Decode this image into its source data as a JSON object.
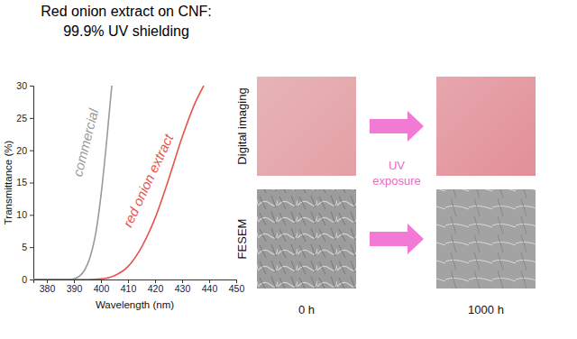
{
  "chart_data": {
    "type": "line",
    "title": "Red onion extract on CNF:\n99.9% UV shielding",
    "xlabel": "Wavelength (nm)",
    "ylabel": "Transmittance (%)",
    "xlim": [
      375,
      450
    ],
    "xticks": [
      380,
      390,
      400,
      410,
      420,
      430,
      440,
      450
    ],
    "ylim": [
      0,
      30
    ],
    "yticks": [
      0,
      5,
      10,
      15,
      20,
      25,
      30
    ],
    "grid": false,
    "series": [
      {
        "name": "commercial",
        "color": "#9a9a9a",
        "x": [
          375,
          385,
          388,
          390,
          392,
          394,
          396,
          398,
          400,
          402,
          404
        ],
        "values": [
          0,
          0,
          0,
          0.1,
          0.5,
          1.5,
          3.5,
          7,
          13,
          21,
          30
        ]
      },
      {
        "name": "red onion extract",
        "color": "#e8524c",
        "x": [
          375,
          390,
          395,
          400,
          405,
          410,
          415,
          420,
          425,
          430,
          435,
          438
        ],
        "values": [
          0,
          0,
          0,
          0.1,
          0.6,
          2,
          5,
          9.5,
          15.5,
          22,
          27.5,
          30
        ]
      }
    ]
  },
  "panels": {
    "row_labels": [
      "Digital imaging",
      "FESEM"
    ],
    "arrow_label": "UV\nexposure",
    "time_labels": [
      "0 h",
      "1000 h"
    ]
  }
}
